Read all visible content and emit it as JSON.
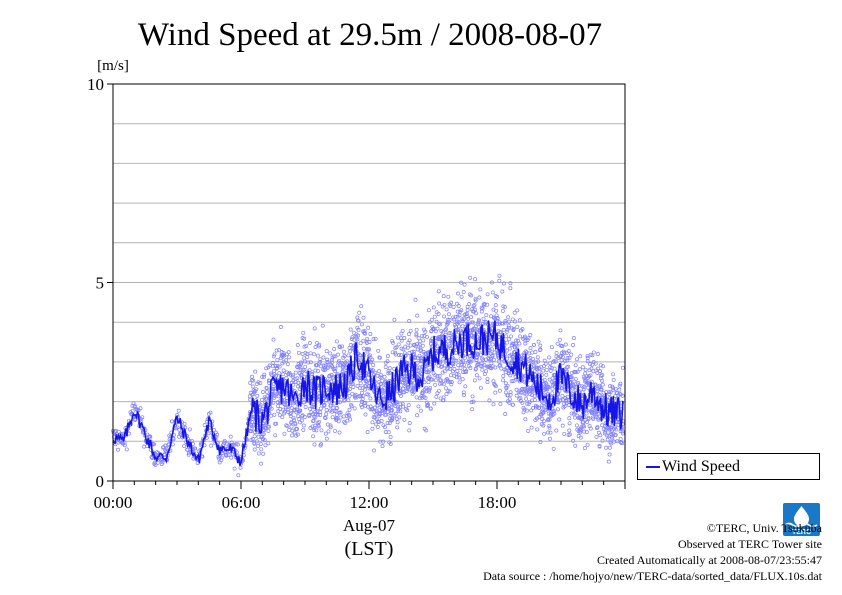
{
  "chart_data": {
    "type": "line",
    "title": "Wind Speed at 29.5m / 2008-08-07",
    "ylabel": "[m/s]",
    "xlabel": "(LST)",
    "date_label": "Aug-07",
    "ylim": [
      0,
      10
    ],
    "y_ticks": [
      "0",
      "5",
      "10"
    ],
    "xlim_hours": [
      0,
      24
    ],
    "x_ticks": [
      "00:00",
      "06:00",
      "12:00",
      "18:00"
    ],
    "grid": true,
    "legend_position": "right",
    "series": [
      {
        "name": "Wind Speed",
        "color": "#1515e6",
        "scatter_color": "#8080ff",
        "x_hours": [
          0.0,
          0.5,
          1.0,
          1.5,
          2.0,
          2.5,
          3.0,
          3.5,
          4.0,
          4.5,
          5.0,
          5.5,
          6.0,
          6.5,
          7.0,
          7.5,
          8.0,
          8.5,
          9.0,
          9.5,
          10.0,
          10.5,
          11.0,
          11.5,
          12.0,
          12.5,
          13.0,
          13.5,
          14.0,
          14.5,
          15.0,
          15.5,
          16.0,
          16.5,
          17.0,
          17.5,
          18.0,
          18.5,
          19.0,
          19.5,
          20.0,
          20.5,
          21.0,
          21.5,
          22.0,
          22.5,
          23.0,
          23.5
        ],
        "values": [
          1.1,
          1.0,
          1.8,
          1.2,
          0.6,
          0.6,
          1.6,
          1.0,
          0.5,
          1.5,
          0.8,
          0.8,
          0.5,
          1.8,
          1.5,
          2.2,
          2.4,
          2.0,
          2.5,
          2.2,
          2.4,
          2.3,
          2.5,
          3.2,
          2.6,
          2.0,
          2.2,
          2.7,
          2.8,
          2.6,
          3.2,
          3.3,
          3.4,
          3.6,
          3.5,
          3.6,
          3.6,
          3.2,
          3.0,
          2.7,
          2.3,
          2.1,
          2.6,
          2.2,
          1.9,
          2.3,
          1.8,
          1.7
        ]
      }
    ]
  },
  "legend": {
    "label": "Wind Speed"
  },
  "credits": {
    "line1": "©TERC, Univ. Tsukuba",
    "line2": "Observed at TERC Tower site",
    "line3": "Created Automatically at 2008-08-07/23:55:47",
    "line4": "Data source : /home/hojyo/new/TERC-data/sorted_data/FLUX.10s.dat"
  },
  "logo": {
    "text": "TERC",
    "icon": "terc-logo-icon",
    "color": "#1a78c8"
  }
}
